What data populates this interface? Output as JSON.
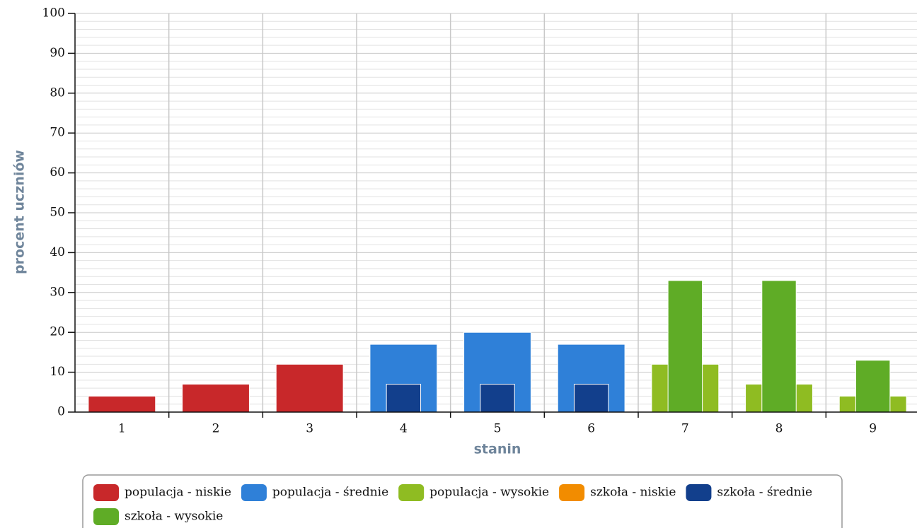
{
  "chart_data": {
    "type": "bar",
    "x_label": "stanin",
    "y_label": "procent uczniów",
    "categories": [
      "1",
      "2",
      "3",
      "4",
      "5",
      "6",
      "7",
      "8",
      "9"
    ],
    "series": [
      {
        "name": "populacja - niskie",
        "color": "#c8282a",
        "group": "populacja",
        "values": [
          4,
          7,
          12,
          null,
          null,
          null,
          null,
          null,
          null
        ]
      },
      {
        "name": "populacja - średnie",
        "color": "#2f80d8",
        "group": "populacja",
        "values": [
          null,
          null,
          null,
          17,
          20,
          17,
          null,
          null,
          null
        ]
      },
      {
        "name": "populacja - wysokie",
        "color": "#8fbc22",
        "group": "populacja",
        "values": [
          null,
          null,
          null,
          null,
          null,
          null,
          12,
          7,
          4
        ]
      },
      {
        "name": "szkoła - niskie",
        "color": "#f28c00",
        "group": "szkoła",
        "values": [
          null,
          null,
          null,
          null,
          null,
          null,
          null,
          null,
          null
        ]
      },
      {
        "name": "szkoła - średnie",
        "color": "#123f8c",
        "group": "szkoła",
        "values": [
          null,
          null,
          null,
          7,
          7,
          7,
          null,
          null,
          null
        ]
      },
      {
        "name": "szkoła - wysokie",
        "color": "#5fac26",
        "group": "szkoła",
        "values": [
          null,
          null,
          null,
          null,
          null,
          null,
          33,
          33,
          13
        ]
      }
    ],
    "ylim": [
      0,
      100
    ],
    "yticks": [
      0,
      10,
      20,
      30,
      40,
      50,
      60,
      70,
      80,
      90,
      100
    ],
    "grid": true
  }
}
